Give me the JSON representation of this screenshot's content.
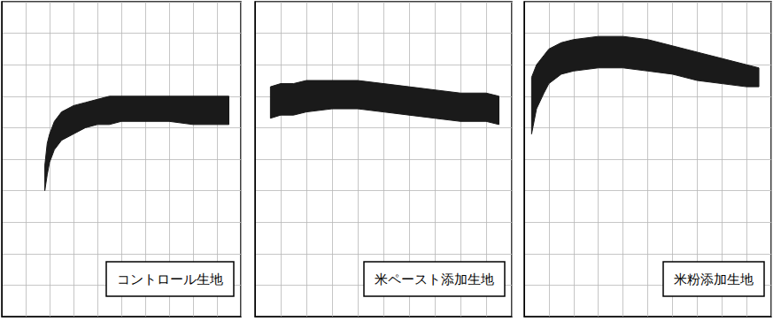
{
  "chart_data": [
    {
      "type": "band",
      "title": "コントロール生地",
      "color": "#1a1a1a",
      "grid": true,
      "tick_labels": false,
      "x": [
        18,
        19,
        20,
        22,
        25,
        30,
        35,
        40,
        45,
        50,
        60,
        70,
        80,
        90,
        95
      ],
      "upper": [
        48,
        55,
        58,
        62,
        65,
        67,
        68,
        69,
        70,
        70,
        70,
        70,
        70,
        70,
        70
      ],
      "lower": [
        40,
        45,
        49,
        53,
        56,
        58,
        60,
        61,
        61,
        62,
        62,
        62,
        61,
        61,
        61
      ],
      "xlim": [
        0,
        100
      ],
      "ylim": [
        0,
        100
      ],
      "xticks": [
        0,
        10,
        20,
        30,
        40,
        50,
        60,
        70,
        80,
        90,
        100
      ],
      "yticks": [
        0,
        10,
        20,
        30,
        40,
        50,
        60,
        70,
        80,
        90,
        100
      ]
    },
    {
      "type": "band",
      "title": "米ペースト添加生地",
      "color": "#1a1a1a",
      "grid": true,
      "tick_labels": false,
      "x": [
        6,
        10,
        15,
        20,
        30,
        40,
        50,
        60,
        70,
        80,
        90,
        95
      ],
      "upper": [
        73,
        74,
        74,
        75,
        75,
        75,
        74,
        73,
        72,
        71,
        71,
        70
      ],
      "lower": [
        63,
        64,
        64,
        65,
        66,
        66,
        65,
        64,
        63,
        62,
        62,
        61
      ],
      "xlim": [
        0,
        100
      ],
      "ylim": [
        0,
        100
      ],
      "xticks": [
        0,
        10,
        20,
        30,
        40,
        50,
        60,
        70,
        80,
        90,
        100
      ],
      "yticks": [
        0,
        10,
        20,
        30,
        40,
        50,
        60,
        70,
        80,
        90,
        100
      ]
    },
    {
      "type": "band",
      "title": "米粉添加生地",
      "color": "#1a1a1a",
      "grid": true,
      "tick_labels": false,
      "x": [
        3,
        5,
        8,
        10,
        15,
        20,
        30,
        40,
        50,
        60,
        70,
        80,
        90,
        95
      ],
      "upper": [
        76,
        80,
        83,
        85,
        87,
        88,
        89,
        89,
        88,
        86,
        84,
        82,
        80,
        79
      ],
      "lower": [
        58,
        66,
        71,
        74,
        77,
        78,
        79,
        79,
        78,
        77,
        75,
        74,
        73,
        73
      ],
      "xlim": [
        0,
        100
      ],
      "ylim": [
        0,
        100
      ],
      "xticks": [
        0,
        10,
        20,
        30,
        40,
        50,
        60,
        70,
        80,
        90,
        100
      ],
      "yticks": [
        0,
        10,
        20,
        30,
        40,
        50,
        60,
        70,
        80,
        90,
        100
      ]
    }
  ]
}
